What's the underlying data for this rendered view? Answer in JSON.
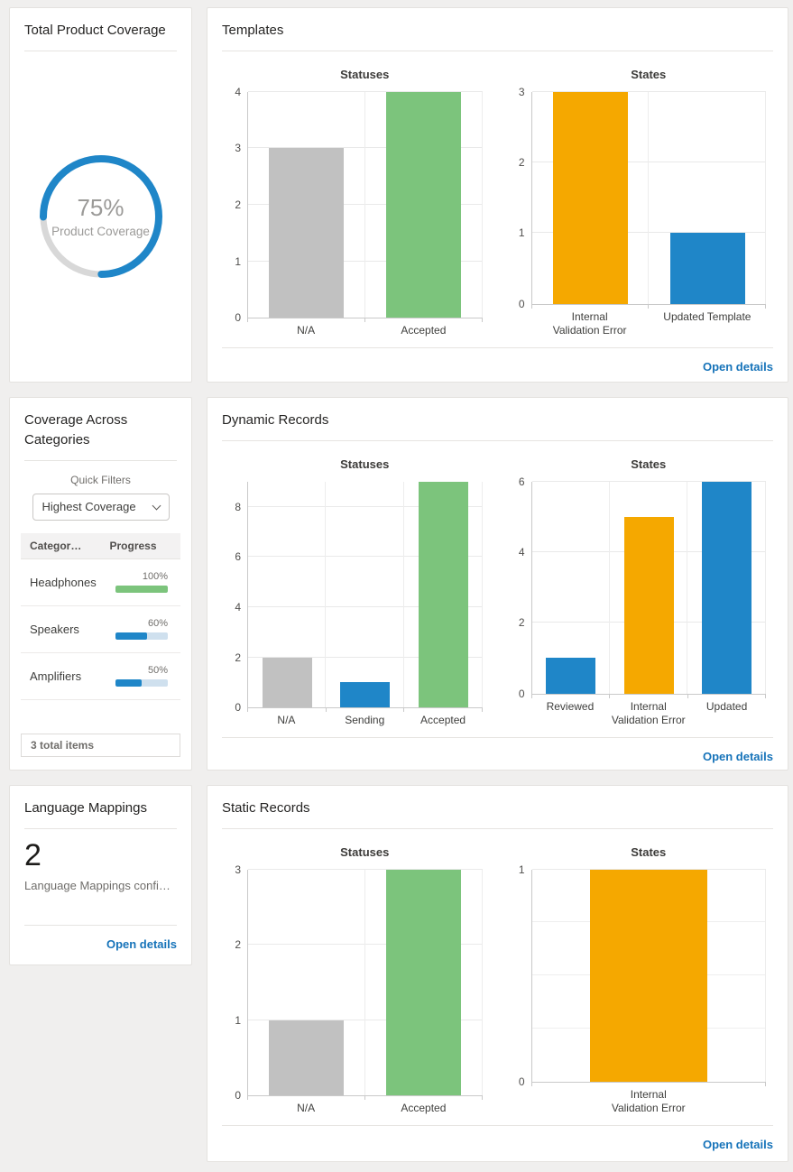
{
  "colors": {
    "blue": "#1f86c8",
    "green": "#7cc47c",
    "orange": "#f5a800",
    "gray": "#c1c1c1",
    "link": "#1673b9",
    "donut_track": "#d8d8d8",
    "progress_track": "#cfe0ee"
  },
  "total_coverage_card": {
    "title": "Total Product Coverage",
    "percent_value": 75,
    "percent_label": "75%",
    "caption": "Product Coverage"
  },
  "categories_card": {
    "title": "Coverage Across Categories",
    "quick_filters_label": "Quick Filters",
    "filter_value": "Highest Coverage",
    "table": {
      "columns": [
        "Categor…",
        "Progress"
      ],
      "rows": [
        {
          "category": "Headphones",
          "percent_label": "100%",
          "percent": 100,
          "color": "green"
        },
        {
          "category": "Speakers",
          "percent_label": "60%",
          "percent": 60,
          "color": "blue"
        },
        {
          "category": "Amplifiers",
          "percent_label": "50%",
          "percent": 50,
          "color": "blue"
        }
      ]
    },
    "footer": "3 total items"
  },
  "language_card": {
    "title": "Language Mappings",
    "count": "2",
    "caption": "Language Mappings configur…",
    "link_label": "Open details"
  },
  "cards": [
    {
      "title": "Templates",
      "link_label": "Open details",
      "charts": [
        0,
        1
      ]
    },
    {
      "title": "Dynamic Records",
      "link_label": "Open details",
      "charts": [
        2,
        3
      ]
    },
    {
      "title": "Static Records",
      "link_label": "Open details",
      "charts": [
        4,
        5
      ]
    }
  ],
  "chart_data": [
    {
      "type": "bar",
      "card": "Templates",
      "title": "Statuses",
      "categories": [
        "N/A",
        "Accepted"
      ],
      "values": [
        3,
        4
      ],
      "bar_colors": [
        "gray",
        "green"
      ],
      "ylim": [
        0,
        4
      ],
      "yticks": [
        0,
        1,
        2,
        3,
        4
      ]
    },
    {
      "type": "bar",
      "card": "Templates",
      "title": "States",
      "categories": [
        "Internal\nValidation Error",
        "Updated Template"
      ],
      "values": [
        3,
        1
      ],
      "bar_colors": [
        "orange",
        "blue"
      ],
      "ylim": [
        0,
        3
      ],
      "yticks": [
        0,
        1,
        2,
        3
      ]
    },
    {
      "type": "bar",
      "card": "Dynamic Records",
      "title": "Statuses",
      "categories": [
        "N/A",
        "Sending",
        "Accepted"
      ],
      "values": [
        2,
        1,
        9
      ],
      "bar_colors": [
        "gray",
        "blue",
        "green"
      ],
      "ylim": [
        0,
        9
      ],
      "yticks": [
        0,
        2,
        4,
        6,
        8
      ]
    },
    {
      "type": "bar",
      "card": "Dynamic Records",
      "title": "States",
      "categories": [
        "Reviewed",
        "Internal\nValidation Error",
        "Updated"
      ],
      "values": [
        1,
        5,
        6
      ],
      "bar_colors": [
        "blue",
        "orange",
        "blue"
      ],
      "ylim": [
        0,
        6
      ],
      "yticks": [
        0,
        2,
        4,
        6
      ]
    },
    {
      "type": "bar",
      "card": "Static Records",
      "title": "Statuses",
      "categories": [
        "N/A",
        "Accepted"
      ],
      "values": [
        1,
        3
      ],
      "bar_colors": [
        "gray",
        "green"
      ],
      "ylim": [
        0,
        3
      ],
      "yticks": [
        0,
        1,
        2,
        3
      ]
    },
    {
      "type": "bar",
      "card": "Static Records",
      "title": "States",
      "categories": [
        "Internal\nValidation Error"
      ],
      "values": [
        1
      ],
      "bar_colors": [
        "orange"
      ],
      "ylim": [
        0,
        1
      ],
      "yticks": [
        0,
        1
      ],
      "minor_ticks": [
        0.25,
        0.5,
        0.75
      ]
    }
  ]
}
